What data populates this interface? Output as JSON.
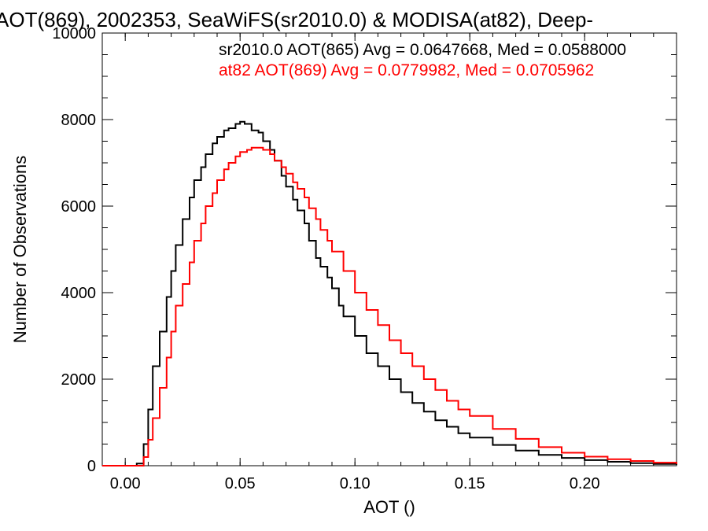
{
  "chart_data": {
    "type": "line",
    "title": "AOT(869), 2002353, SeaWiFS(sr2010.0) & MODISA(at82), Deep-",
    "xlabel": "AOT ()",
    "ylabel": "Number of Observations",
    "xlim": [
      -0.01,
      0.24
    ],
    "ylim": [
      0,
      10000
    ],
    "x_ticks": [
      0.0,
      0.05,
      0.1,
      0.15,
      0.2
    ],
    "x_tick_labels": [
      "0.00",
      "0.05",
      "0.10",
      "0.15",
      "0.20"
    ],
    "y_ticks": [
      0,
      2000,
      4000,
      6000,
      8000,
      10000
    ],
    "y_tick_labels": [
      "0",
      "2000",
      "4000",
      "6000",
      "8000",
      "10000"
    ],
    "step": "histogram",
    "legend_placement": "top-right",
    "series": [
      {
        "name": "sr2010.0 AOT(865) Avg = 0.0647668, Med = 0.0588000",
        "color": "#000000",
        "x": [
          -0.01,
          0.0,
          0.005,
          0.008,
          0.01,
          0.012,
          0.015,
          0.018,
          0.02,
          0.022,
          0.025,
          0.028,
          0.03,
          0.033,
          0.035,
          0.038,
          0.04,
          0.043,
          0.045,
          0.048,
          0.05,
          0.052,
          0.055,
          0.058,
          0.06,
          0.063,
          0.065,
          0.068,
          0.07,
          0.073,
          0.075,
          0.078,
          0.08,
          0.083,
          0.085,
          0.088,
          0.09,
          0.093,
          0.095,
          0.1,
          0.105,
          0.11,
          0.115,
          0.12,
          0.125,
          0.13,
          0.135,
          0.14,
          0.145,
          0.15,
          0.16,
          0.17,
          0.18,
          0.19,
          0.2,
          0.21,
          0.22,
          0.23,
          0.24
        ],
        "values": [
          0,
          0,
          50,
          500,
          1300,
          2300,
          3100,
          3900,
          4500,
          5100,
          5700,
          6200,
          6600,
          6900,
          7200,
          7450,
          7600,
          7750,
          7800,
          7900,
          7950,
          7900,
          7750,
          7700,
          7500,
          7300,
          7050,
          6700,
          6450,
          6150,
          5900,
          5600,
          5200,
          4800,
          4600,
          4350,
          4100,
          3700,
          3450,
          3000,
          2600,
          2300,
          2000,
          1700,
          1450,
          1250,
          1050,
          900,
          750,
          650,
          480,
          350,
          250,
          180,
          130,
          90,
          60,
          40,
          20
        ]
      },
      {
        "name": "at82 AOT(869) Avg = 0.0779982, Med = 0.0705962",
        "color": "#ff0000",
        "x": [
          -0.01,
          0.005,
          0.008,
          0.01,
          0.012,
          0.015,
          0.018,
          0.02,
          0.022,
          0.025,
          0.028,
          0.03,
          0.033,
          0.035,
          0.038,
          0.04,
          0.043,
          0.045,
          0.048,
          0.05,
          0.053,
          0.055,
          0.058,
          0.06,
          0.063,
          0.065,
          0.068,
          0.07,
          0.073,
          0.075,
          0.078,
          0.08,
          0.083,
          0.085,
          0.088,
          0.09,
          0.095,
          0.1,
          0.105,
          0.11,
          0.115,
          0.12,
          0.125,
          0.13,
          0.135,
          0.14,
          0.145,
          0.15,
          0.16,
          0.17,
          0.18,
          0.19,
          0.2,
          0.21,
          0.22,
          0.23,
          0.24
        ],
        "values": [
          0,
          0,
          200,
          600,
          1100,
          1800,
          2500,
          3100,
          3700,
          4200,
          4700,
          5200,
          5600,
          6000,
          6300,
          6600,
          6850,
          7000,
          7150,
          7250,
          7300,
          7350,
          7350,
          7300,
          7200,
          7050,
          6900,
          6750,
          6550,
          6400,
          6200,
          5950,
          5700,
          5450,
          5200,
          4950,
          4500,
          4000,
          3600,
          3250,
          2900,
          2600,
          2300,
          2000,
          1750,
          1500,
          1300,
          1150,
          850,
          620,
          430,
          300,
          210,
          150,
          110,
          70,
          40
        ]
      }
    ]
  }
}
